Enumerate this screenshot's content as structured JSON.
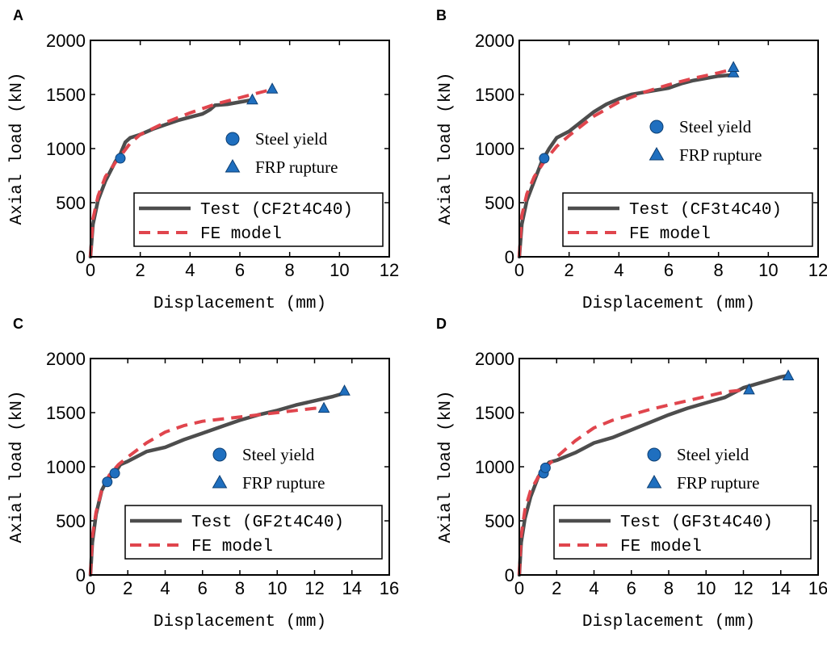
{
  "colors": {
    "test": "#4d4d4d",
    "fe": "#e0454d",
    "marker_fill": "#1f6fbf",
    "marker_edge": "#0d3f73",
    "axis": "#000000"
  },
  "chart_data": [
    {
      "type": "line",
      "panel": "A",
      "xlabel": "Displacement (mm)",
      "ylabel": "Axial load (kN)",
      "xlim": [
        0,
        12
      ],
      "ylim": [
        0,
        2000
      ],
      "xticks": [
        0,
        2,
        4,
        6,
        8,
        10,
        12
      ],
      "yticks": [
        0,
        500,
        1000,
        1500,
        2000
      ],
      "series": [
        {
          "name": "Test (CF2t4C40)",
          "style": "solid",
          "points": [
            [
              0,
              0
            ],
            [
              0.1,
              300
            ],
            [
              0.3,
              520
            ],
            [
              0.6,
              700
            ],
            [
              1.0,
              880
            ],
            [
              1.2,
              950
            ],
            [
              1.4,
              1060
            ],
            [
              1.6,
              1100
            ],
            [
              2.0,
              1130
            ],
            [
              2.5,
              1180
            ],
            [
              3.0,
              1220
            ],
            [
              3.5,
              1260
            ],
            [
              4.0,
              1290
            ],
            [
              4.5,
              1320
            ],
            [
              4.8,
              1360
            ],
            [
              5.0,
              1400
            ],
            [
              5.5,
              1410
            ],
            [
              6.0,
              1430
            ],
            [
              6.5,
              1450
            ]
          ]
        },
        {
          "name": "FE model",
          "style": "dashed",
          "points": [
            [
              0,
              0
            ],
            [
              0.1,
              350
            ],
            [
              0.3,
              560
            ],
            [
              0.6,
              740
            ],
            [
              1.0,
              870
            ],
            [
              1.3,
              960
            ],
            [
              1.6,
              1050
            ],
            [
              2.0,
              1130
            ],
            [
              3.0,
              1240
            ],
            [
              4.0,
              1330
            ],
            [
              5.0,
              1410
            ],
            [
              6.0,
              1470
            ],
            [
              7.0,
              1530
            ],
            [
              7.3,
              1550
            ]
          ]
        }
      ],
      "markers": {
        "steel_yield": [
          [
            1.2,
            910
          ]
        ],
        "frp_rupture": [
          [
            6.5,
            1450
          ],
          [
            7.3,
            1550
          ]
        ]
      },
      "legend": {
        "markers": [
          "Steel yield",
          "FRP rupture"
        ],
        "lines": [
          "Test (CF2t4C40)",
          "FE model"
        ]
      }
    },
    {
      "type": "line",
      "panel": "B",
      "xlabel": "Displacement (mm)",
      "ylabel": "Axial load (kN)",
      "xlim": [
        0,
        12
      ],
      "ylim": [
        0,
        2000
      ],
      "xticks": [
        0,
        2,
        4,
        6,
        8,
        10,
        12
      ],
      "yticks": [
        0,
        500,
        1000,
        1500,
        2000
      ],
      "series": [
        {
          "name": "Test (CF3t4C40)",
          "style": "solid",
          "points": [
            [
              0,
              0
            ],
            [
              0.1,
              300
            ],
            [
              0.3,
              520
            ],
            [
              0.6,
              700
            ],
            [
              0.9,
              880
            ],
            [
              1.2,
              1000
            ],
            [
              1.5,
              1100
            ],
            [
              2.0,
              1160
            ],
            [
              2.5,
              1250
            ],
            [
              3.0,
              1340
            ],
            [
              3.5,
              1410
            ],
            [
              4.0,
              1460
            ],
            [
              4.5,
              1500
            ],
            [
              5.0,
              1520
            ],
            [
              5.5,
              1540
            ],
            [
              6.0,
              1560
            ],
            [
              6.5,
              1600
            ],
            [
              7.0,
              1630
            ],
            [
              7.5,
              1650
            ],
            [
              8.0,
              1670
            ],
            [
              8.5,
              1680
            ]
          ]
        },
        {
          "name": "FE model",
          "style": "dashed",
          "points": [
            [
              0,
              0
            ],
            [
              0.1,
              380
            ],
            [
              0.3,
              580
            ],
            [
              0.6,
              740
            ],
            [
              1.0,
              880
            ],
            [
              1.5,
              1020
            ],
            [
              2.0,
              1120
            ],
            [
              3.0,
              1300
            ],
            [
              4.0,
              1430
            ],
            [
              5.0,
              1520
            ],
            [
              6.0,
              1590
            ],
            [
              7.0,
              1650
            ],
            [
              8.0,
              1700
            ],
            [
              8.5,
              1730
            ]
          ]
        }
      ],
      "markers": {
        "steel_yield": [
          [
            1.0,
            910
          ]
        ],
        "frp_rupture": [
          [
            8.6,
            1700
          ],
          [
            8.6,
            1750
          ]
        ]
      },
      "legend": {
        "markers": [
          "Steel yield",
          "FRP rupture"
        ],
        "lines": [
          "Test (CF3t4C40)",
          "FE model"
        ]
      }
    },
    {
      "type": "line",
      "panel": "C",
      "xlabel": "Displacement (mm)",
      "ylabel": "Axial load (kN)",
      "xlim": [
        0,
        16
      ],
      "ylim": [
        0,
        2000
      ],
      "xticks": [
        0,
        2,
        4,
        6,
        8,
        10,
        12,
        14,
        16
      ],
      "yticks": [
        0,
        500,
        1000,
        1500,
        2000
      ],
      "series": [
        {
          "name": "Test (GF2t4C40)",
          "style": "solid",
          "points": [
            [
              0,
              0
            ],
            [
              0.1,
              300
            ],
            [
              0.3,
              560
            ],
            [
              0.6,
              780
            ],
            [
              0.9,
              880
            ],
            [
              1.3,
              940
            ],
            [
              1.6,
              1020
            ],
            [
              2.0,
              1050
            ],
            [
              3.0,
              1140
            ],
            [
              4.0,
              1180
            ],
            [
              5.0,
              1250
            ],
            [
              6.0,
              1310
            ],
            [
              7.0,
              1370
            ],
            [
              8.0,
              1430
            ],
            [
              9.0,
              1480
            ],
            [
              10.0,
              1520
            ],
            [
              11.0,
              1570
            ],
            [
              12.0,
              1610
            ],
            [
              13.0,
              1650
            ],
            [
              13.6,
              1680
            ]
          ]
        },
        {
          "name": "FE model",
          "style": "dashed",
          "points": [
            [
              0,
              0
            ],
            [
              0.1,
              350
            ],
            [
              0.3,
              580
            ],
            [
              0.6,
              780
            ],
            [
              1.0,
              920
            ],
            [
              1.5,
              1020
            ],
            [
              2.0,
              1090
            ],
            [
              3.0,
              1220
            ],
            [
              4.0,
              1320
            ],
            [
              5.0,
              1380
            ],
            [
              6.0,
              1420
            ],
            [
              7.0,
              1440
            ],
            [
              8.0,
              1460
            ],
            [
              9.0,
              1480
            ],
            [
              10.0,
              1500
            ],
            [
              11.0,
              1520
            ],
            [
              12.0,
              1540
            ],
            [
              12.5,
              1540
            ]
          ]
        }
      ],
      "markers": {
        "steel_yield": [
          [
            0.9,
            860
          ],
          [
            1.3,
            940
          ]
        ],
        "frp_rupture": [
          [
            12.5,
            1540
          ],
          [
            13.6,
            1700
          ]
        ]
      },
      "legend": {
        "markers": [
          "Steel yield",
          "FRP rupture"
        ],
        "lines": [
          "Test (GF2t4C40)",
          "FE model"
        ]
      }
    },
    {
      "type": "line",
      "panel": "D",
      "xlabel": "Displacement (mm)",
      "ylabel": "Axial load (kN)",
      "xlim": [
        0,
        16
      ],
      "ylim": [
        0,
        2000
      ],
      "xticks": [
        0,
        2,
        4,
        6,
        8,
        10,
        12,
        14,
        16
      ],
      "yticks": [
        0,
        500,
        1000,
        1500,
        2000
      ],
      "series": [
        {
          "name": "Test (GF3t4C40)",
          "style": "solid",
          "points": [
            [
              0,
              0
            ],
            [
              0.1,
              300
            ],
            [
              0.3,
              520
            ],
            [
              0.6,
              720
            ],
            [
              1.0,
              900
            ],
            [
              1.3,
              980
            ],
            [
              1.6,
              1040
            ],
            [
              2.0,
              1060
            ],
            [
              3.0,
              1130
            ],
            [
              4.0,
              1220
            ],
            [
              5.0,
              1270
            ],
            [
              6.0,
              1340
            ],
            [
              7.0,
              1410
            ],
            [
              8.0,
              1480
            ],
            [
              9.0,
              1540
            ],
            [
              10.0,
              1590
            ],
            [
              11.0,
              1640
            ],
            [
              12.0,
              1730
            ],
            [
              13.0,
              1780
            ],
            [
              14.0,
              1830
            ],
            [
              14.3,
              1840
            ]
          ]
        },
        {
          "name": "FE model",
          "style": "dashed",
          "points": [
            [
              0,
              0
            ],
            [
              0.1,
              360
            ],
            [
              0.3,
              600
            ],
            [
              0.6,
              780
            ],
            [
              1.0,
              900
            ],
            [
              1.5,
              1010
            ],
            [
              2.0,
              1090
            ],
            [
              3.0,
              1240
            ],
            [
              4.0,
              1360
            ],
            [
              5.0,
              1430
            ],
            [
              6.0,
              1480
            ],
            [
              7.0,
              1530
            ],
            [
              8.0,
              1570
            ],
            [
              9.0,
              1610
            ],
            [
              10.0,
              1650
            ],
            [
              11.0,
              1690
            ],
            [
              12.0,
              1710
            ],
            [
              12.3,
              1710
            ]
          ]
        }
      ],
      "markers": {
        "steel_yield": [
          [
            1.3,
            940
          ],
          [
            1.4,
            990
          ]
        ],
        "frp_rupture": [
          [
            12.3,
            1710
          ],
          [
            14.4,
            1840
          ]
        ]
      },
      "legend": {
        "markers": [
          "Steel yield",
          "FRP rupture"
        ],
        "lines": [
          "Test (GF3t4C40)",
          "FE model"
        ]
      }
    }
  ]
}
